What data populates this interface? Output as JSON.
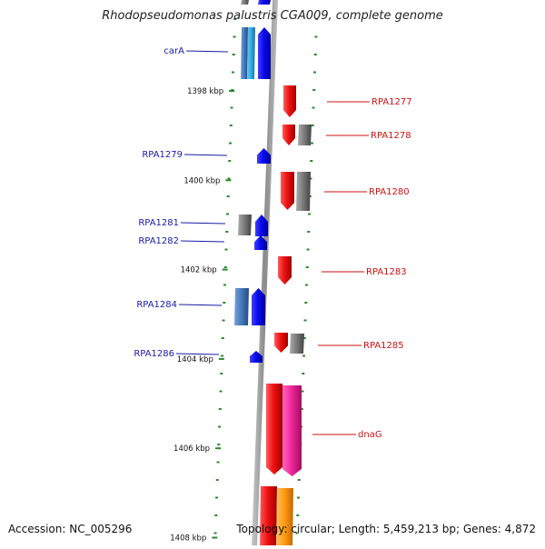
{
  "title": "Rhodopseudomonas palustris CGA009, complete genome",
  "accession": "Accession: NC_005296",
  "topology": "Topology: circular; Length: 5,459,213 bp; Genes: 4,872",
  "colors": {
    "blue_label": "#1a1aa8",
    "red_label": "#cc1111",
    "blue_gene": "#0a0af0",
    "lightblue_gene": "#33aadd",
    "steelblue_gene": "#4477bb",
    "red_gene": "#ee1111",
    "gray_gene": "#777777",
    "pink_gene": "#ee2299",
    "orange_gene": "#ff9911",
    "tick": "#2a8a2a",
    "axis": "#999999"
  },
  "kbp_ticks": [
    {
      "label": "1398 kbp",
      "kbp": 1398
    },
    {
      "label": "1400 kbp",
      "kbp": 1400
    },
    {
      "label": "1402 kbp",
      "kbp": 1402
    },
    {
      "label": "1404 kbp",
      "kbp": 1404
    },
    {
      "label": "1406 kbp",
      "kbp": 1406
    },
    {
      "label": "1408 kbp",
      "kbp": 1408
    }
  ],
  "left_labels": [
    {
      "text": "carA"
    },
    {
      "text": "RPA1279"
    },
    {
      "text": "RPA1281"
    },
    {
      "text": "RPA1282"
    },
    {
      "text": "RPA1284"
    },
    {
      "text": "RPA1286"
    }
  ],
  "right_labels": [
    {
      "text": "RPA1277"
    },
    {
      "text": "RPA1278"
    },
    {
      "text": "RPA1280"
    },
    {
      "text": "RPA1283"
    },
    {
      "text": "RPA1285"
    },
    {
      "text": "dnaG"
    }
  ]
}
